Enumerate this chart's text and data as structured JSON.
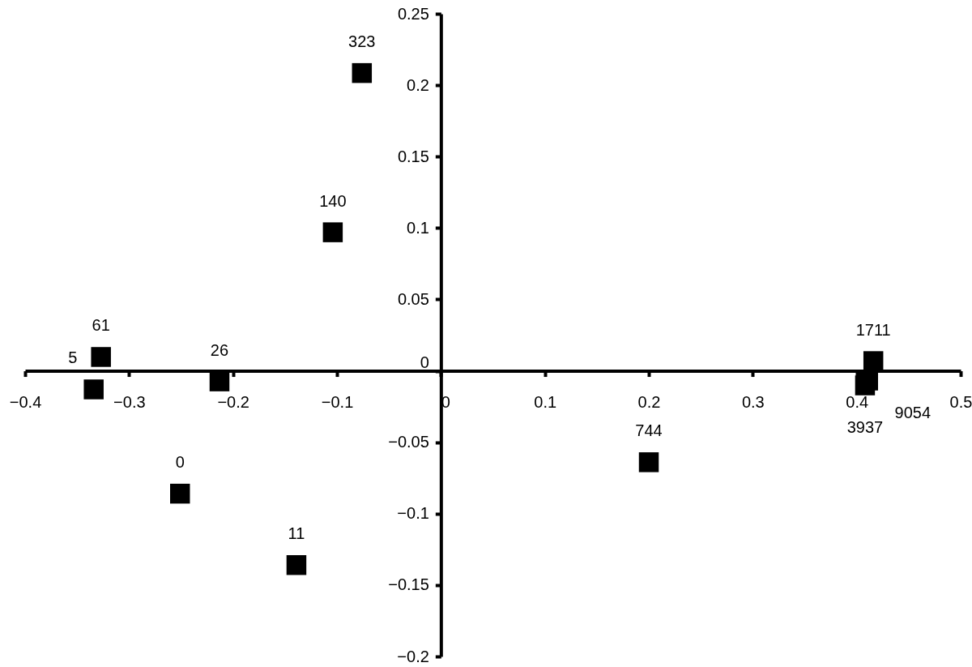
{
  "chart_data": {
    "type": "scatter",
    "marker": "square",
    "grid": false,
    "x": [
      -0.076,
      -0.104,
      -0.327,
      -0.334,
      -0.213,
      -0.251,
      -0.139,
      0.2,
      0.416,
      0.408,
      0.411
    ],
    "series": [
      {
        "color": "#000000",
        "values": [
          0.2085,
          0.097,
          0.0097,
          -0.013,
          -0.0074,
          -0.086,
          -0.136,
          -0.064,
          0.0068,
          -0.0102,
          -0.0068
        ]
      }
    ],
    "xlim": [
      -0.4,
      0.5
    ],
    "ylim": [
      -0.2,
      0.25
    ],
    "xticks": [
      -0.4,
      -0.3,
      -0.2,
      -0.1,
      0,
      0.1,
      0.2,
      0.3,
      0.4,
      0.5
    ],
    "yticks": [
      -0.2,
      -0.15,
      -0.1,
      -0.05,
      0,
      0.05,
      0.1,
      0.15,
      0.2,
      0.25
    ],
    "annotations": [
      {
        "text": "323",
        "x": -0.076,
        "y": 0.2085
      },
      {
        "text": "140",
        "x": -0.104,
        "y": 0.097
      },
      {
        "text": "61",
        "x": -0.327,
        "y": 0.0097
      },
      {
        "text": "5",
        "x": -0.334,
        "y": -0.013
      },
      {
        "text": "26",
        "x": -0.213,
        "y": -0.0074
      },
      {
        "text": "0",
        "x": -0.251,
        "y": -0.086
      },
      {
        "text": "11",
        "x": -0.139,
        "y": -0.136
      },
      {
        "text": "744",
        "x": 0.2,
        "y": -0.064
      },
      {
        "text": "1711",
        "x": 0.416,
        "y": 0.0068
      },
      {
        "text": "3937",
        "x": 0.408,
        "y": -0.0102
      },
      {
        "text": "9054",
        "x": 0.411,
        "y": -0.0068
      }
    ]
  }
}
